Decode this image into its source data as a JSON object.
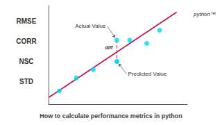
{
  "chart_data": {
    "type": "scatter",
    "title": "How to calculate performance metrics in python",
    "side_labels": [
      "RMSE",
      "CORR",
      "NSC",
      "STD"
    ],
    "logo_text": "python™",
    "series": [
      {
        "type": "line",
        "color": "#c0144c",
        "line_style": "solid",
        "x": [
          0.5,
          6.5
        ],
        "values": [
          0.9,
          6.1
        ]
      },
      {
        "type": "scatter",
        "color": "#00d8f0",
        "x": [
          1.0,
          1.8,
          2.6,
          3.7,
          4.3,
          5.1,
          5.7
        ],
        "values": [
          1.3,
          2.1,
          2.6,
          3.1,
          4.4,
          4.2,
          5.0
        ]
      },
      {
        "type": "scatter",
        "color": "#00d8f0",
        "x": [
          3.7,
          3.7
        ],
        "values": [
          4.4,
          3.1
        ]
      },
      {
        "type": "line",
        "color": "#e03060",
        "line_style": "dashed",
        "x": [
          3.7,
          3.7
        ],
        "values": [
          4.4,
          3.1
        ]
      }
    ],
    "annotations": [
      {
        "text": "diff",
        "x": 3.15,
        "y": 3.8
      },
      {
        "text": "Actual Value",
        "point": [
          3.7,
          4.4
        ]
      },
      {
        "text": "Predicted Value",
        "point": [
          3.7,
          3.1
        ]
      }
    ],
    "xlim": [
      0.5,
      7.0
    ],
    "ylim": [
      0.5,
      6.5
    ],
    "tick_labels": false,
    "grid": false
  }
}
